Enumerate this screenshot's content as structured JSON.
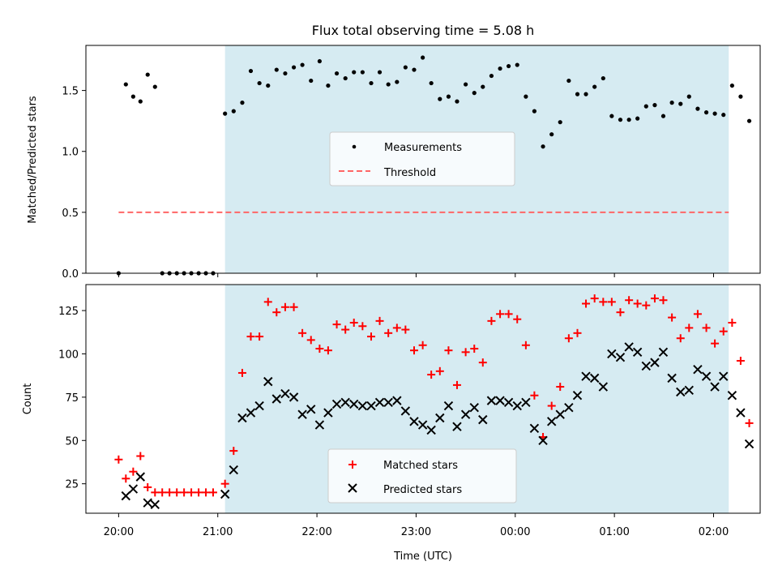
{
  "chart_data": [
    {
      "type": "scatter",
      "title": "Flux total observing time = 5.08 h",
      "xlabel": "",
      "ylabel": "Matched/Predicted stars",
      "xlim": [
        -0.33,
        6.47
      ],
      "ylim": [
        0,
        1.87
      ],
      "x_unit": "hours since 20:00 UTC",
      "yticks": [
        0.0,
        0.5,
        1.0,
        1.5
      ],
      "ytick_labels": [
        "0.0",
        "0.5",
        "1.0",
        "1.5"
      ],
      "shaded_region": {
        "x_start": 1.073,
        "x_end": 6.153,
        "color": "#add8e6"
      },
      "legend_position": "center",
      "series": [
        {
          "name": "Measurements",
          "marker": "dot",
          "color": "#000000",
          "points": [
            [
              0.0,
              0.0
            ],
            [
              0.073,
              1.55
            ],
            [
              0.147,
              1.45
            ],
            [
              0.22,
              1.41
            ],
            [
              0.293,
              1.63
            ],
            [
              0.367,
              1.53
            ],
            [
              0.44,
              0.0
            ],
            [
              0.513,
              0.0
            ],
            [
              0.587,
              0.0
            ],
            [
              0.66,
              0.0
            ],
            [
              0.733,
              0.0
            ],
            [
              0.807,
              0.0
            ],
            [
              0.88,
              0.0
            ],
            [
              0.953,
              0.0
            ],
            [
              1.073,
              1.31
            ],
            [
              1.16,
              1.33
            ],
            [
              1.247,
              1.4
            ],
            [
              1.333,
              1.66
            ],
            [
              1.42,
              1.56
            ],
            [
              1.507,
              1.54
            ],
            [
              1.593,
              1.67
            ],
            [
              1.68,
              1.64
            ],
            [
              1.767,
              1.69
            ],
            [
              1.853,
              1.71
            ],
            [
              1.94,
              1.58
            ],
            [
              2.027,
              1.74
            ],
            [
              2.113,
              1.54
            ],
            [
              2.2,
              1.64
            ],
            [
              2.287,
              1.6
            ],
            [
              2.373,
              1.65
            ],
            [
              2.46,
              1.65
            ],
            [
              2.547,
              1.56
            ],
            [
              2.633,
              1.65
            ],
            [
              2.72,
              1.55
            ],
            [
              2.807,
              1.57
            ],
            [
              2.893,
              1.69
            ],
            [
              2.98,
              1.67
            ],
            [
              3.067,
              1.77
            ],
            [
              3.153,
              1.56
            ],
            [
              3.24,
              1.43
            ],
            [
              3.327,
              1.45
            ],
            [
              3.413,
              1.41
            ],
            [
              3.5,
              1.55
            ],
            [
              3.587,
              1.48
            ],
            [
              3.673,
              1.53
            ],
            [
              3.76,
              1.62
            ],
            [
              3.847,
              1.68
            ],
            [
              3.933,
              1.7
            ],
            [
              4.02,
              1.71
            ],
            [
              4.107,
              1.45
            ],
            [
              4.193,
              1.33
            ],
            [
              4.28,
              1.04
            ],
            [
              4.367,
              1.14
            ],
            [
              4.453,
              1.24
            ],
            [
              4.54,
              1.58
            ],
            [
              4.627,
              1.47
            ],
            [
              4.713,
              1.47
            ],
            [
              4.8,
              1.53
            ],
            [
              4.887,
              1.6
            ],
            [
              4.973,
              1.29
            ],
            [
              5.06,
              1.26
            ],
            [
              5.147,
              1.26
            ],
            [
              5.233,
              1.27
            ],
            [
              5.32,
              1.37
            ],
            [
              5.407,
              1.38
            ],
            [
              5.493,
              1.29
            ],
            [
              5.58,
              1.4
            ],
            [
              5.667,
              1.39
            ],
            [
              5.753,
              1.45
            ],
            [
              5.84,
              1.35
            ],
            [
              5.927,
              1.32
            ],
            [
              6.013,
              1.31
            ],
            [
              6.1,
              1.3
            ],
            [
              6.187,
              1.54
            ],
            [
              6.273,
              1.45
            ],
            [
              6.36,
              1.25
            ]
          ]
        },
        {
          "name": "Threshold",
          "marker": "dashed-line",
          "color": "#ff6666",
          "points": [
            [
              0.0,
              0.5
            ],
            [
              6.153,
              0.5
            ]
          ]
        }
      ]
    },
    {
      "type": "scatter",
      "title": "",
      "xlabel": "Time (UTC)",
      "ylabel": "Count",
      "xlim": [
        -0.33,
        6.47
      ],
      "ylim": [
        8,
        140
      ],
      "x_unit": "hours since 20:00 UTC",
      "xticks": [
        0,
        1,
        2,
        3,
        4,
        5,
        6
      ],
      "xtick_labels": [
        "20:00",
        "21:00",
        "22:00",
        "23:00",
        "00:00",
        "01:00",
        "02:00"
      ],
      "yticks": [
        25,
        50,
        75,
        100,
        125
      ],
      "ytick_labels": [
        "25",
        "50",
        "75",
        "100",
        "125"
      ],
      "shaded_region": {
        "x_start": 1.073,
        "x_end": 6.153,
        "color": "#add8e6"
      },
      "legend_position": "lower center",
      "series": [
        {
          "name": "Matched stars",
          "marker": "plus",
          "color": "#ff0000",
          "points": [
            [
              0.0,
              39
            ],
            [
              0.073,
              28
            ],
            [
              0.147,
              32
            ],
            [
              0.22,
              41
            ],
            [
              0.293,
              23
            ],
            [
              0.367,
              20
            ],
            [
              0.44,
              20
            ],
            [
              0.513,
              20
            ],
            [
              0.587,
              20
            ],
            [
              0.66,
              20
            ],
            [
              0.733,
              20
            ],
            [
              0.807,
              20
            ],
            [
              0.88,
              20
            ],
            [
              0.953,
              20
            ],
            [
              1.073,
              25
            ],
            [
              1.16,
              44
            ],
            [
              1.247,
              89
            ],
            [
              1.333,
              110
            ],
            [
              1.42,
              110
            ],
            [
              1.507,
              130
            ],
            [
              1.593,
              124
            ],
            [
              1.68,
              127
            ],
            [
              1.767,
              127
            ],
            [
              1.853,
              112
            ],
            [
              1.94,
              108
            ],
            [
              2.027,
              103
            ],
            [
              2.113,
              102
            ],
            [
              2.2,
              117
            ],
            [
              2.287,
              114
            ],
            [
              2.373,
              118
            ],
            [
              2.46,
              116
            ],
            [
              2.547,
              110
            ],
            [
              2.633,
              119
            ],
            [
              2.72,
              112
            ],
            [
              2.807,
              115
            ],
            [
              2.893,
              114
            ],
            [
              2.98,
              102
            ],
            [
              3.067,
              105
            ],
            [
              3.153,
              88
            ],
            [
              3.24,
              90
            ],
            [
              3.327,
              102
            ],
            [
              3.413,
              82
            ],
            [
              3.5,
              101
            ],
            [
              3.587,
              103
            ],
            [
              3.673,
              95
            ],
            [
              3.76,
              119
            ],
            [
              3.847,
              123
            ],
            [
              3.933,
              123
            ],
            [
              4.02,
              120
            ],
            [
              4.107,
              105
            ],
            [
              4.193,
              76
            ],
            [
              4.28,
              52
            ],
            [
              4.367,
              70
            ],
            [
              4.453,
              81
            ],
            [
              4.54,
              109
            ],
            [
              4.627,
              112
            ],
            [
              4.713,
              129
            ],
            [
              4.8,
              132
            ],
            [
              4.887,
              130
            ],
            [
              4.973,
              130
            ],
            [
              5.06,
              124
            ],
            [
              5.147,
              131
            ],
            [
              5.233,
              129
            ],
            [
              5.32,
              128
            ],
            [
              5.407,
              132
            ],
            [
              5.493,
              131
            ],
            [
              5.58,
              121
            ],
            [
              5.667,
              109
            ],
            [
              5.753,
              115
            ],
            [
              5.84,
              123
            ],
            [
              5.927,
              115
            ],
            [
              6.013,
              106
            ],
            [
              6.1,
              113
            ],
            [
              6.187,
              118
            ],
            [
              6.273,
              96
            ],
            [
              6.36,
              60
            ]
          ]
        },
        {
          "name": "Predicted stars",
          "marker": "x",
          "color": "#000000",
          "points": [
            [
              0.073,
              18
            ],
            [
              0.147,
              22
            ],
            [
              0.22,
              29
            ],
            [
              0.293,
              14
            ],
            [
              0.367,
              13
            ],
            [
              1.073,
              19
            ],
            [
              1.16,
              33
            ],
            [
              1.247,
              63
            ],
            [
              1.333,
              66
            ],
            [
              1.42,
              70
            ],
            [
              1.507,
              84
            ],
            [
              1.593,
              74
            ],
            [
              1.68,
              77
            ],
            [
              1.767,
              75
            ],
            [
              1.853,
              65
            ],
            [
              1.94,
              68
            ],
            [
              2.027,
              59
            ],
            [
              2.113,
              66
            ],
            [
              2.2,
              71
            ],
            [
              2.287,
              72
            ],
            [
              2.373,
              71
            ],
            [
              2.46,
              70
            ],
            [
              2.547,
              70
            ],
            [
              2.633,
              72
            ],
            [
              2.72,
              72
            ],
            [
              2.807,
              73
            ],
            [
              2.893,
              67
            ],
            [
              2.98,
              61
            ],
            [
              3.067,
              59
            ],
            [
              3.153,
              56
            ],
            [
              3.24,
              63
            ],
            [
              3.327,
              70
            ],
            [
              3.413,
              58
            ],
            [
              3.5,
              65
            ],
            [
              3.587,
              69
            ],
            [
              3.673,
              62
            ],
            [
              3.76,
              73
            ],
            [
              3.847,
              73
            ],
            [
              3.933,
              72
            ],
            [
              4.02,
              70
            ],
            [
              4.107,
              72
            ],
            [
              4.193,
              57
            ],
            [
              4.28,
              50
            ],
            [
              4.367,
              61
            ],
            [
              4.453,
              65
            ],
            [
              4.54,
              69
            ],
            [
              4.627,
              76
            ],
            [
              4.713,
              87
            ],
            [
              4.8,
              86
            ],
            [
              4.887,
              81
            ],
            [
              4.973,
              100
            ],
            [
              5.06,
              98
            ],
            [
              5.147,
              104
            ],
            [
              5.233,
              101
            ],
            [
              5.32,
              93
            ],
            [
              5.407,
              95
            ],
            [
              5.493,
              101
            ],
            [
              5.58,
              86
            ],
            [
              5.667,
              78
            ],
            [
              5.753,
              79
            ],
            [
              5.84,
              91
            ],
            [
              5.927,
              87
            ],
            [
              6.013,
              81
            ],
            [
              6.1,
              87
            ],
            [
              6.187,
              76
            ],
            [
              6.273,
              66
            ],
            [
              6.36,
              48
            ]
          ]
        }
      ]
    }
  ]
}
